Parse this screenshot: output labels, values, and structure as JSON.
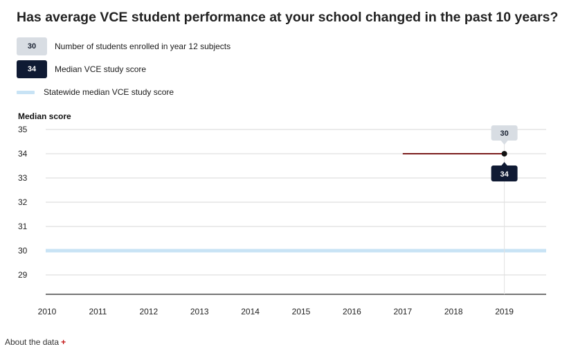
{
  "title": "Has average VCE student performance at your school changed in the past 10 years?",
  "legend": {
    "students": {
      "sample": "30",
      "label": "Number of students enrolled in year 12 subjects"
    },
    "median": {
      "sample": "34",
      "label": "Median VCE study score"
    },
    "statewide": {
      "label": "Statewide median VCE study score"
    }
  },
  "about": {
    "label": "About the data",
    "icon": "plus-icon"
  },
  "colors": {
    "school_line": "#7a1c1c",
    "statewide_line": "#c8e3f5",
    "median_badge": "#0f1a33",
    "students_badge": "#d8dde3",
    "grid": "#d7d7d7"
  },
  "chart_data": {
    "type": "line",
    "ylabel": "Median score",
    "ylim": [
      29,
      35
    ],
    "yticks": [
      "35",
      "34",
      "33",
      "32",
      "31",
      "30",
      "29"
    ],
    "categories": [
      "2010",
      "2011",
      "2012",
      "2013",
      "2014",
      "2015",
      "2016",
      "2017",
      "2018",
      "2019"
    ],
    "series": [
      {
        "name": "Median VCE study score",
        "x": [
          "2017",
          "2018",
          "2019"
        ],
        "values": [
          34,
          34,
          34
        ]
      }
    ],
    "statewide_median": 30,
    "highlight": {
      "year": "2019",
      "median_label": "34",
      "students_label": "30"
    },
    "grid": true
  }
}
